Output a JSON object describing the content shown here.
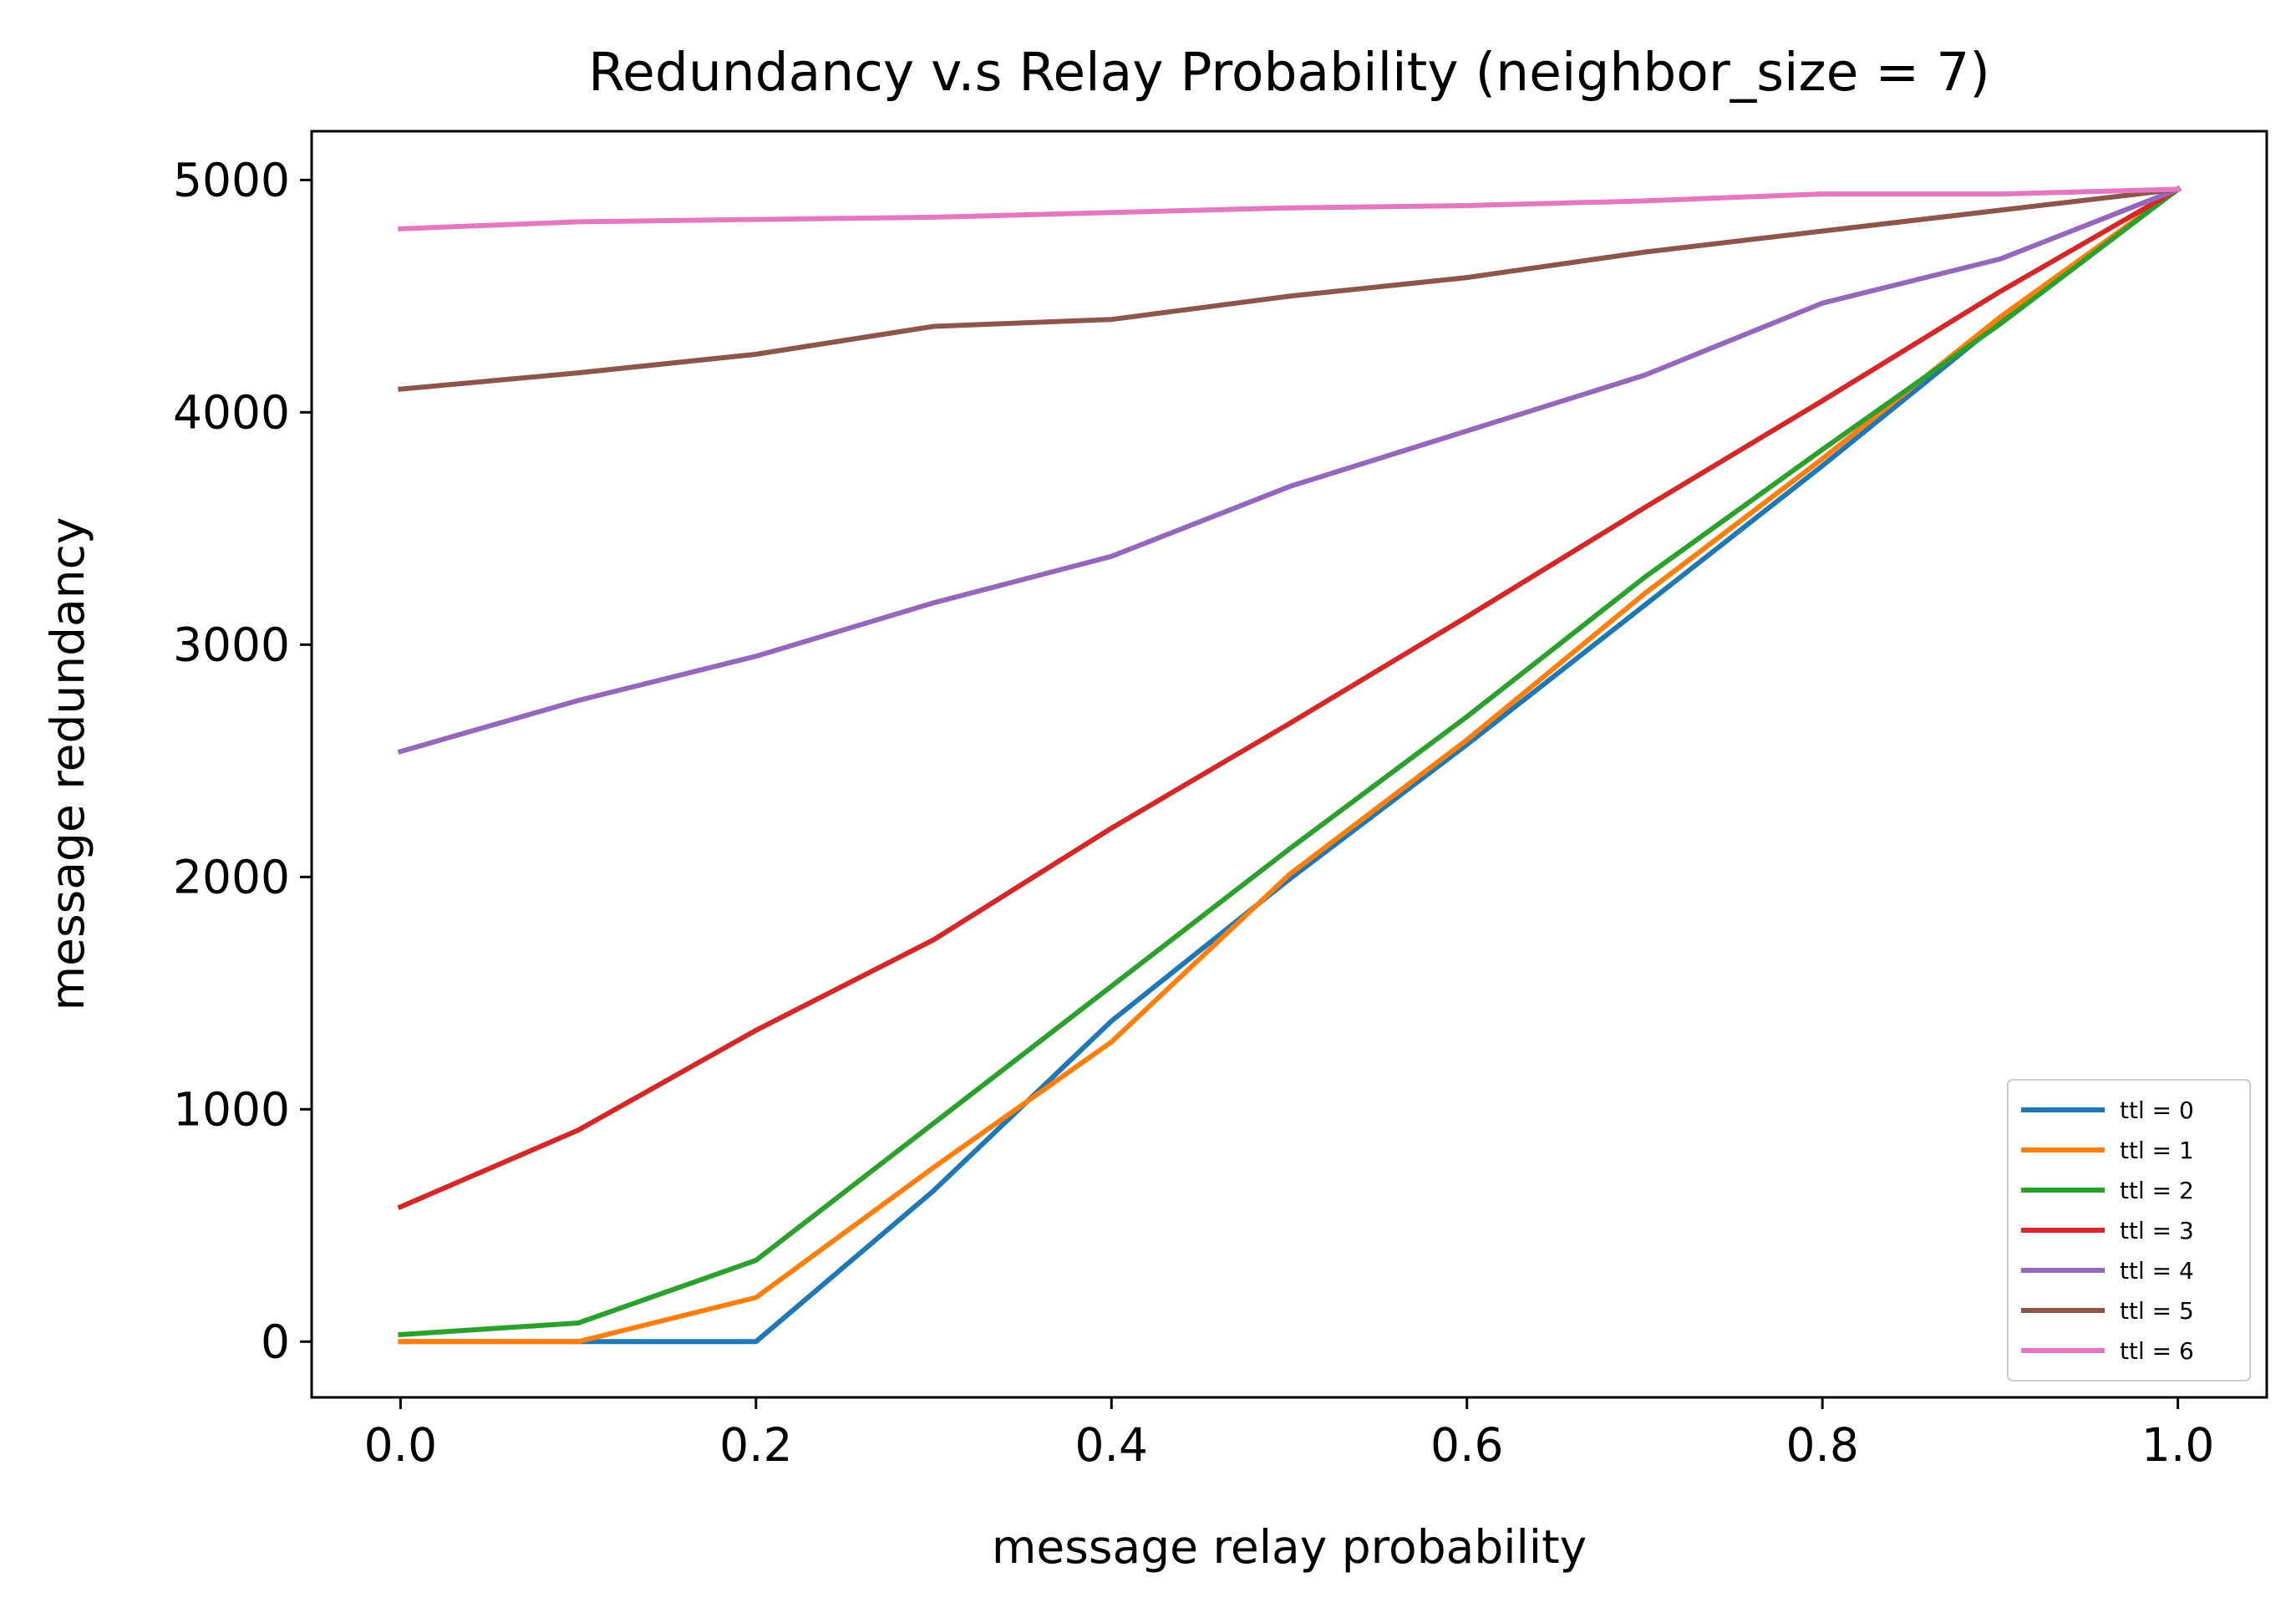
{
  "chart_data": {
    "type": "line",
    "title": "Redundancy v.s Relay Probability (neighbor_size = 7)",
    "xlabel": "message relay probability",
    "ylabel": "message redundancy",
    "xlim": [
      -0.05,
      1.05
    ],
    "ylim": [
      -240,
      5210
    ],
    "xticks": [
      0.0,
      0.2,
      0.4,
      0.6,
      0.8,
      1.0
    ],
    "xtick_labels": [
      "0.0",
      "0.2",
      "0.4",
      "0.6",
      "0.8",
      "1.0"
    ],
    "yticks": [
      0,
      1000,
      2000,
      3000,
      4000,
      5000
    ],
    "ytick_labels": [
      "0",
      "1000",
      "2000",
      "3000",
      "4000",
      "5000"
    ],
    "grid": false,
    "legend_position": "lower right",
    "x": [
      0.0,
      0.1,
      0.2,
      0.3,
      0.4,
      0.5,
      0.6,
      0.7,
      0.8,
      0.9,
      1.0
    ],
    "series": [
      {
        "name": "ttl = 0",
        "color": "#1f77b4",
        "values": [
          0,
          0,
          0,
          650,
          1380,
          1990,
          2570,
          3170,
          3770,
          4390,
          4960
        ]
      },
      {
        "name": "ttl = 1",
        "color": "#ff7f0e",
        "values": [
          0,
          0,
          190,
          750,
          1290,
          2010,
          2590,
          3220,
          3800,
          4410,
          4960
        ]
      },
      {
        "name": "ttl = 2",
        "color": "#2ca02c",
        "values": [
          30,
          80,
          350,
          940,
          1530,
          2120,
          2690,
          3290,
          3840,
          4380,
          4960
        ]
      },
      {
        "name": "ttl = 3",
        "color": "#d62728",
        "values": [
          580,
          910,
          1340,
          1730,
          2210,
          2660,
          3120,
          3590,
          4050,
          4520,
          4960
        ]
      },
      {
        "name": "ttl = 4",
        "color": "#9467bd",
        "values": [
          2540,
          2760,
          2950,
          3180,
          3380,
          3680,
          3920,
          4160,
          4470,
          4660,
          4960
        ]
      },
      {
        "name": "ttl = 5",
        "color": "#8c564b",
        "values": [
          4100,
          4170,
          4250,
          4370,
          4400,
          4500,
          4580,
          4690,
          4780,
          4870,
          4960
        ]
      },
      {
        "name": "ttl = 6",
        "color": "#e377c2",
        "values": [
          4790,
          4820,
          4830,
          4840,
          4860,
          4880,
          4890,
          4910,
          4940,
          4940,
          4960
        ]
      }
    ]
  }
}
